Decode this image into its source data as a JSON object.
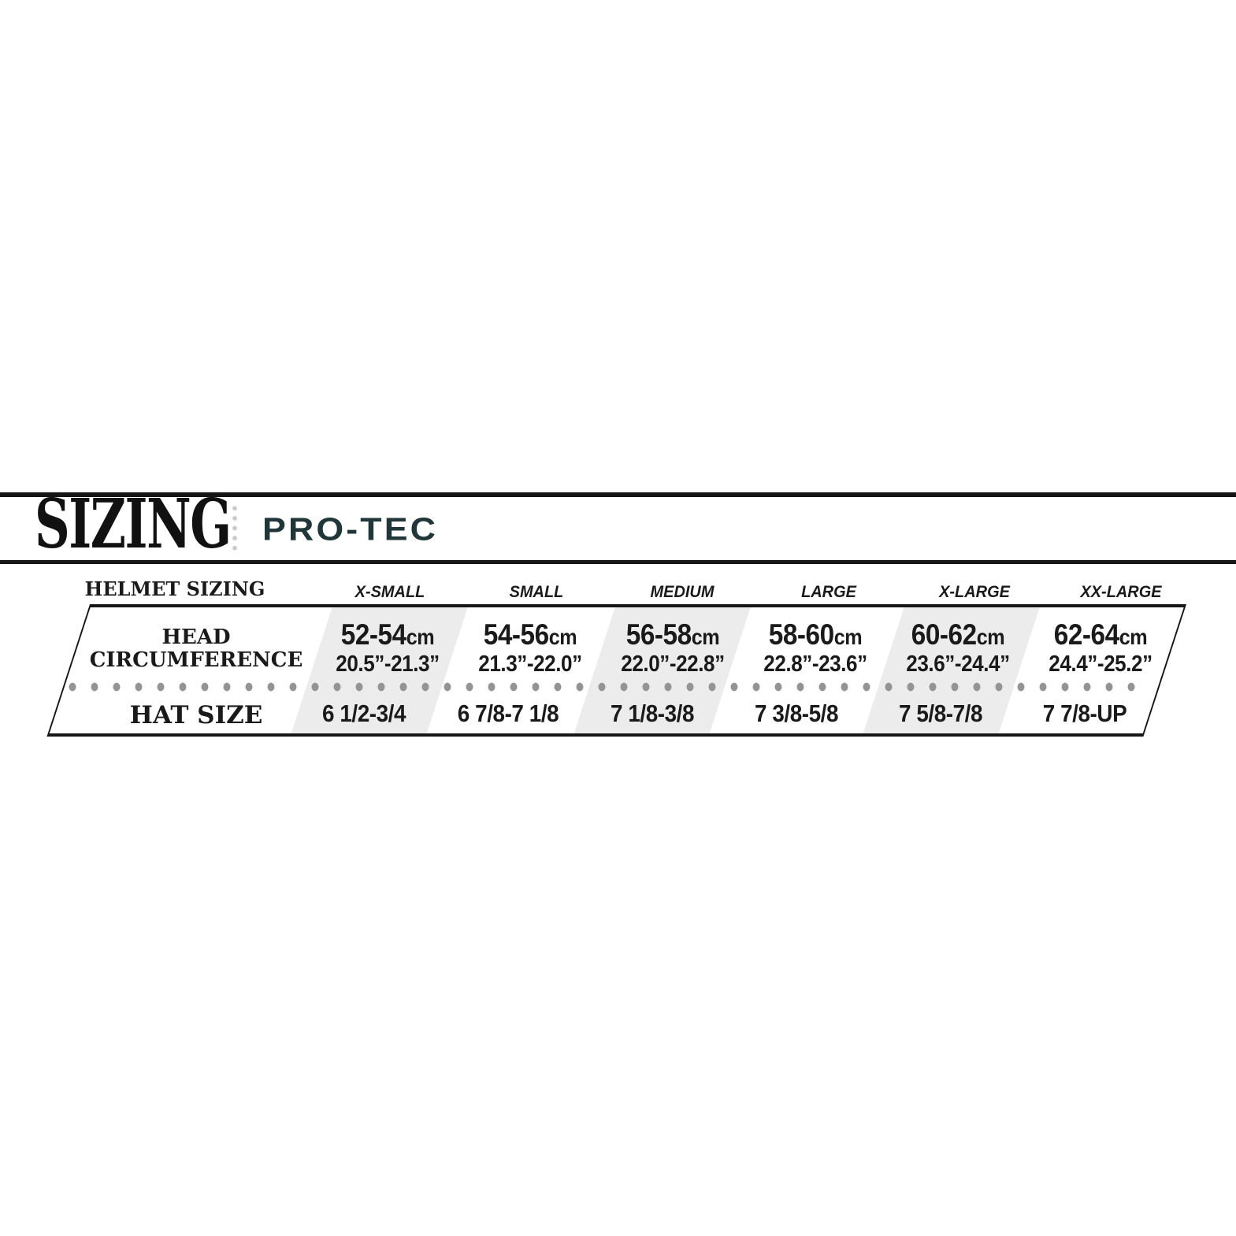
{
  "header": {
    "title": "SIZING",
    "brand": "PRO-TEC"
  },
  "table": {
    "title": "HELMET SIZING",
    "unit_cm": "cm",
    "row_labels": {
      "line1": "HEAD",
      "line2": "CIRCUMFERENCE",
      "hat": "HAT SIZE"
    },
    "columns": [
      {
        "label": "X-SMALL",
        "cm": "52-54",
        "inches": "20.5”-21.3”",
        "hat": "6 1/2-3/4",
        "shaded": true
      },
      {
        "label": "SMALL",
        "cm": "54-56",
        "inches": "21.3”-22.0”",
        "hat": "6 7/8-7 1/8",
        "shaded": false
      },
      {
        "label": "MEDIUM",
        "cm": "56-58",
        "inches": "22.0”-22.8”",
        "hat": "7 1/8-3/8",
        "shaded": true
      },
      {
        "label": "LARGE",
        "cm": "58-60",
        "inches": "22.8”-23.6”",
        "hat": "7 3/8-5/8",
        "shaded": false
      },
      {
        "label": "X-LARGE",
        "cm": "60-62",
        "inches": "23.6”-24.4”",
        "hat": "7 5/8-7/8",
        "shaded": true
      },
      {
        "label": "XX-LARGE",
        "cm": "62-64",
        "inches": "24.4”-25.2”",
        "hat": "7 7/8-UP",
        "shaded": false
      }
    ]
  },
  "chart_data": {
    "type": "table",
    "title": "HELMET SIZING",
    "column_headers": [
      "X-SMALL",
      "SMALL",
      "MEDIUM",
      "LARGE",
      "X-LARGE",
      "XX-LARGE"
    ],
    "rows": [
      {
        "label": "HEAD CIRCUMFERENCE (cm)",
        "values": [
          "52-54",
          "54-56",
          "56-58",
          "58-60",
          "60-62",
          "62-64"
        ]
      },
      {
        "label": "HEAD CIRCUMFERENCE (inches)",
        "values": [
          "20.5-21.3",
          "21.3-22.0",
          "22.0-22.8",
          "22.8-23.6",
          "23.6-24.4",
          "24.4-25.2"
        ]
      },
      {
        "label": "HAT SIZE",
        "values": [
          "6 1/2-3/4",
          "6 7/8-7 1/8",
          "7 1/8-3/8",
          "7 3/8-5/8",
          "7 5/8-7/8",
          "7 7/8-UP"
        ]
      }
    ],
    "layout": "shaded columns: X-SMALL, MEDIUM, X-LARGE; parallelogram skewed table"
  },
  "colors": {
    "brand_logo": "#203638",
    "rule_black": "#161616",
    "stripe_gray": "#ececec",
    "separator_dots": "#949494",
    "divider_dots": "#c9c9c9"
  }
}
